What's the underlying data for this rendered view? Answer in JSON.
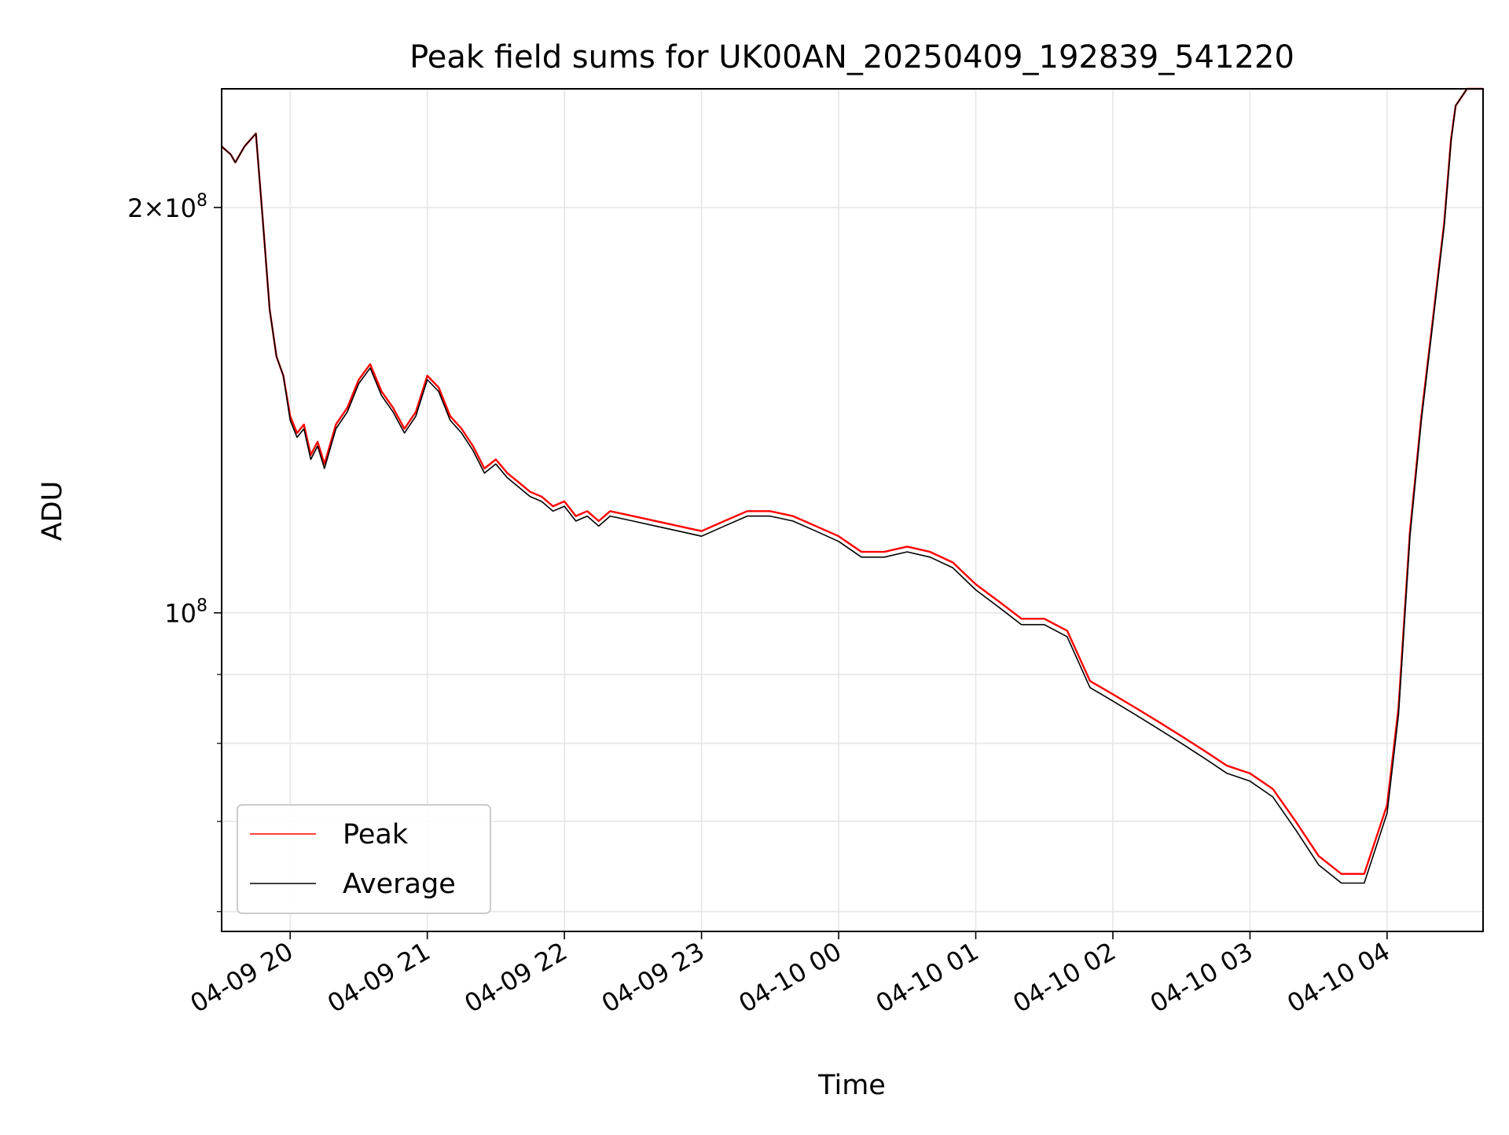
{
  "chart_data": {
    "type": "line",
    "title": "Peak field sums for UK00AN_20250409_192839_541220",
    "xlabel": "Time",
    "ylabel": "ADU",
    "x_ticks": [
      "04-09 20",
      "04-09 21",
      "04-09 22",
      "04-09 23",
      "04-10 00",
      "04-10 01",
      "04-10 02",
      "04-10 03",
      "04-10 04"
    ],
    "y_scale": "log",
    "y_tick_labels": [
      {
        "base": "10",
        "exp": "8",
        "value": 100000000
      },
      {
        "base": "2×10",
        "exp": "8",
        "value": 200000000
      }
    ],
    "y_minor_ticks": [
      60000000,
      70000000,
      80000000,
      90000000,
      300000000
    ],
    "xlim": [
      "2025-04-09 19:30",
      "2025-04-10 04:42"
    ],
    "ylim": [
      58000000,
      245000000
    ],
    "grid": true,
    "legend_position": "lower left",
    "series": [
      {
        "name": "Peak",
        "color": "#ff0000",
        "x": [
          "2025-04-09 19:30",
          "2025-04-09 19:34",
          "2025-04-09 19:36",
          "2025-04-09 19:40",
          "2025-04-09 19:43",
          "2025-04-09 19:45",
          "2025-04-09 19:48",
          "2025-04-09 19:51",
          "2025-04-09 19:54",
          "2025-04-09 19:57",
          "2025-04-09 20:00",
          "2025-04-09 20:03",
          "2025-04-09 20:06",
          "2025-04-09 20:09",
          "2025-04-09 20:12",
          "2025-04-09 20:15",
          "2025-04-09 20:20",
          "2025-04-09 20:25",
          "2025-04-09 20:30",
          "2025-04-09 20:35",
          "2025-04-09 20:40",
          "2025-04-09 20:45",
          "2025-04-09 20:50",
          "2025-04-09 20:55",
          "2025-04-09 21:00",
          "2025-04-09 21:05",
          "2025-04-09 21:10",
          "2025-04-09 21:15",
          "2025-04-09 21:20",
          "2025-04-09 21:25",
          "2025-04-09 21:30",
          "2025-04-09 21:35",
          "2025-04-09 21:40",
          "2025-04-09 21:45",
          "2025-04-09 21:50",
          "2025-04-09 21:55",
          "2025-04-09 22:00",
          "2025-04-09 22:05",
          "2025-04-09 22:10",
          "2025-04-09 22:15",
          "2025-04-09 22:20",
          "2025-04-09 22:30",
          "2025-04-09 22:40",
          "2025-04-09 22:50",
          "2025-04-09 23:00",
          "2025-04-09 23:10",
          "2025-04-09 23:20",
          "2025-04-09 23:30",
          "2025-04-09 23:40",
          "2025-04-09 23:50",
          "2025-04-10 00:00",
          "2025-04-10 00:10",
          "2025-04-10 00:20",
          "2025-04-10 00:30",
          "2025-04-10 00:40",
          "2025-04-10 00:50",
          "2025-04-10 01:00",
          "2025-04-10 01:10",
          "2025-04-10 01:20",
          "2025-04-10 01:30",
          "2025-04-10 01:40",
          "2025-04-10 01:50",
          "2025-04-10 02:00",
          "2025-04-10 02:10",
          "2025-04-10 02:20",
          "2025-04-10 02:30",
          "2025-04-10 02:40",
          "2025-04-10 02:50",
          "2025-04-10 03:00",
          "2025-04-10 03:10",
          "2025-04-10 03:20",
          "2025-04-10 03:30",
          "2025-04-10 03:40",
          "2025-04-10 03:50",
          "2025-04-10 04:00",
          "2025-04-10 04:05",
          "2025-04-10 04:10",
          "2025-04-10 04:15",
          "2025-04-10 04:20",
          "2025-04-10 04:25",
          "2025-04-10 04:28",
          "2025-04-10 04:30",
          "2025-04-10 04:35",
          "2025-04-10 04:42"
        ],
        "y": [
          222000000,
          219000000,
          216000000,
          222000000,
          225000000,
          227000000,
          196000000,
          168000000,
          155000000,
          150000000,
          140000000,
          136000000,
          138000000,
          131000000,
          134000000,
          129000000,
          138000000,
          142000000,
          149000000,
          153000000,
          146000000,
          142000000,
          137000000,
          141000000,
          150000000,
          147000000,
          140000000,
          137000000,
          133000000,
          128000000,
          130000000,
          127000000,
          125000000,
          123000000,
          122000000,
          120000000,
          121000000,
          118000000,
          119000000,
          117000000,
          119000000,
          118000000,
          117000000,
          116000000,
          115000000,
          117000000,
          119000000,
          119000000,
          118000000,
          116000000,
          114000000,
          111000000,
          111000000,
          112000000,
          111000000,
          109000000,
          105000000,
          102000000,
          99000000,
          99000000,
          97000000,
          89000000,
          87000000,
          85000000,
          83000000,
          81000000,
          79000000,
          77000000,
          76000000,
          74000000,
          70000000,
          66000000,
          64000000,
          64000000,
          72000000,
          85000000,
          115000000,
          140000000,
          165000000,
          195000000,
          225000000,
          238000000,
          245000000,
          245000000
        ]
      },
      {
        "name": "Average",
        "color": "#000000",
        "x": [
          "2025-04-09 19:30",
          "2025-04-09 19:34",
          "2025-04-09 19:36",
          "2025-04-09 19:40",
          "2025-04-09 19:43",
          "2025-04-09 19:45",
          "2025-04-09 19:48",
          "2025-04-09 19:51",
          "2025-04-09 19:54",
          "2025-04-09 19:57",
          "2025-04-09 20:00",
          "2025-04-09 20:03",
          "2025-04-09 20:06",
          "2025-04-09 20:09",
          "2025-04-09 20:12",
          "2025-04-09 20:15",
          "2025-04-09 20:20",
          "2025-04-09 20:25",
          "2025-04-09 20:30",
          "2025-04-09 20:35",
          "2025-04-09 20:40",
          "2025-04-09 20:45",
          "2025-04-09 20:50",
          "2025-04-09 20:55",
          "2025-04-09 21:00",
          "2025-04-09 21:05",
          "2025-04-09 21:10",
          "2025-04-09 21:15",
          "2025-04-09 21:20",
          "2025-04-09 21:25",
          "2025-04-09 21:30",
          "2025-04-09 21:35",
          "2025-04-09 21:40",
          "2025-04-09 21:45",
          "2025-04-09 21:50",
          "2025-04-09 21:55",
          "2025-04-09 22:00",
          "2025-04-09 22:05",
          "2025-04-09 22:10",
          "2025-04-09 22:15",
          "2025-04-09 22:20",
          "2025-04-09 22:30",
          "2025-04-09 22:40",
          "2025-04-09 22:50",
          "2025-04-09 23:00",
          "2025-04-09 23:10",
          "2025-04-09 23:20",
          "2025-04-09 23:30",
          "2025-04-09 23:40",
          "2025-04-09 23:50",
          "2025-04-10 00:00",
          "2025-04-10 00:10",
          "2025-04-10 00:20",
          "2025-04-10 00:30",
          "2025-04-10 00:40",
          "2025-04-10 00:50",
          "2025-04-10 01:00",
          "2025-04-10 01:10",
          "2025-04-10 01:20",
          "2025-04-10 01:30",
          "2025-04-10 01:40",
          "2025-04-10 01:50",
          "2025-04-10 02:00",
          "2025-04-10 02:10",
          "2025-04-10 02:20",
          "2025-04-10 02:30",
          "2025-04-10 02:40",
          "2025-04-10 02:50",
          "2025-04-10 03:00",
          "2025-04-10 03:10",
          "2025-04-10 03:20",
          "2025-04-10 03:30",
          "2025-04-10 03:40",
          "2025-04-10 03:50",
          "2025-04-10 04:00",
          "2025-04-10 04:05",
          "2025-04-10 04:10",
          "2025-04-10 04:15",
          "2025-04-10 04:20",
          "2025-04-10 04:25",
          "2025-04-10 04:28",
          "2025-04-10 04:30",
          "2025-04-10 04:35",
          "2025-04-10 04:42"
        ],
        "y": [
          222000000,
          219000000,
          216000000,
          222000000,
          225000000,
          227000000,
          196000000,
          168000000,
          155000000,
          150000000,
          139000000,
          135000000,
          137000000,
          130000000,
          133000000,
          128000000,
          137000000,
          141000000,
          148000000,
          152000000,
          145000000,
          141000000,
          136000000,
          140000000,
          149000000,
          146000000,
          139000000,
          136000000,
          132000000,
          127000000,
          129000000,
          126000000,
          124000000,
          122000000,
          121000000,
          119000000,
          120000000,
          117000000,
          118000000,
          116000000,
          118000000,
          117000000,
          116000000,
          115000000,
          114000000,
          116000000,
          118000000,
          118000000,
          117000000,
          115000000,
          113000000,
          110000000,
          110000000,
          111000000,
          110000000,
          108000000,
          104000000,
          101000000,
          98000000,
          98000000,
          96000000,
          88000000,
          86000000,
          84000000,
          82000000,
          80000000,
          78000000,
          76000000,
          75000000,
          73000000,
          69000000,
          65000000,
          63000000,
          63000000,
          71000000,
          84000000,
          114000000,
          139000000,
          164000000,
          194000000,
          224000000,
          238000000,
          245000000,
          245000000
        ]
      }
    ]
  }
}
